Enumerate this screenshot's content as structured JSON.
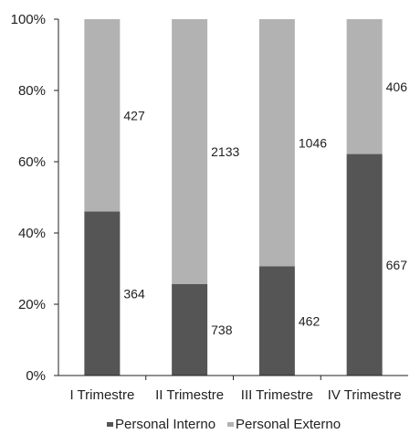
{
  "chart_data": {
    "type": "bar",
    "stacked": "percent",
    "categories": [
      "I Trimestre",
      "II Trimestre",
      "III Trimestre",
      "IV Trimestre"
    ],
    "series": [
      {
        "name": "Personal Interno",
        "values": [
          364,
          738,
          462,
          667
        ],
        "color": "#555555"
      },
      {
        "name": "Personal Externo",
        "values": [
          427,
          2133,
          1046,
          406
        ],
        "color": "#b2b2b2"
      }
    ],
    "ylim": [
      0,
      100
    ],
    "yticks": [
      "0%",
      "20%",
      "40%",
      "60%",
      "80%",
      "100%"
    ],
    "grid": false,
    "legend": "bottom"
  }
}
